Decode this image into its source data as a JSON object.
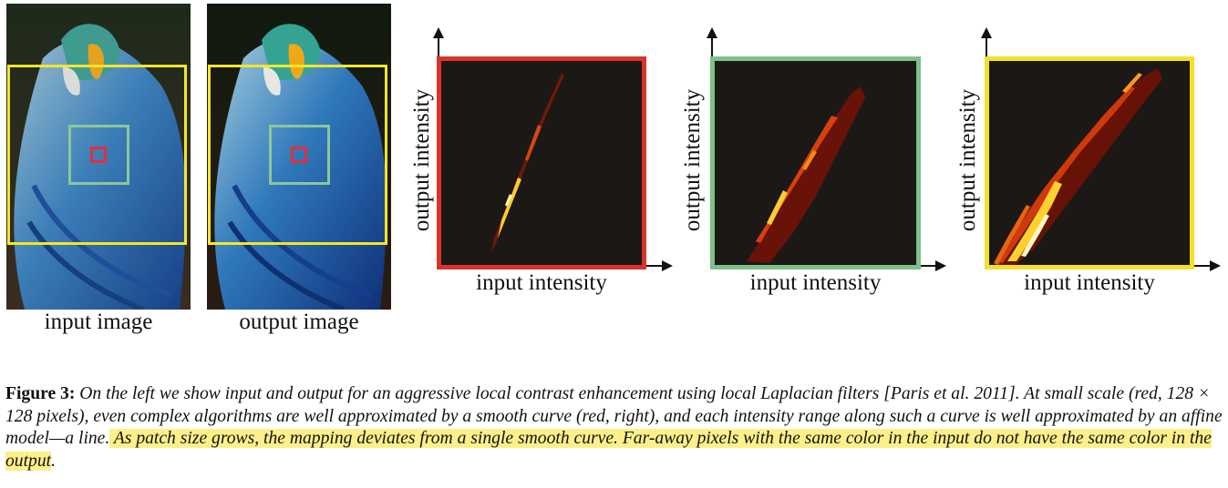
{
  "figure": {
    "images": [
      {
        "label": "input image"
      },
      {
        "label": "output image"
      }
    ],
    "panels": [
      {
        "xlabel": "input intensity",
        "ylabel": "output intensity",
        "border_color": "#d8342a"
      },
      {
        "xlabel": "input intensity",
        "ylabel": "output intensity",
        "border_color": "#7fc08a"
      },
      {
        "xlabel": "input intensity",
        "ylabel": "output intensity",
        "border_color": "#f2e02a"
      }
    ],
    "box_colors": {
      "large": "#f5e52a",
      "medium": "#8cc79a",
      "small": "#e0303a"
    }
  },
  "caption": {
    "label": "Figure 3:",
    "text_plain": " On the left we show input and output for an aggressive local contrast enhancement using local Laplacian filters [Paris et al. 2011]. At small scale (red, 128 × 128 pixels), even complex algorithms are well approximated by a smooth curve (red, right), and each intensity range along such a curve is well approximated by an affine model—a line.",
    "text_highlighted": " As patch size grows, the mapping deviates from a single smooth curve. Far-away pixels with the same color in the input do not have the same color in the output",
    "text_end": "."
  }
}
